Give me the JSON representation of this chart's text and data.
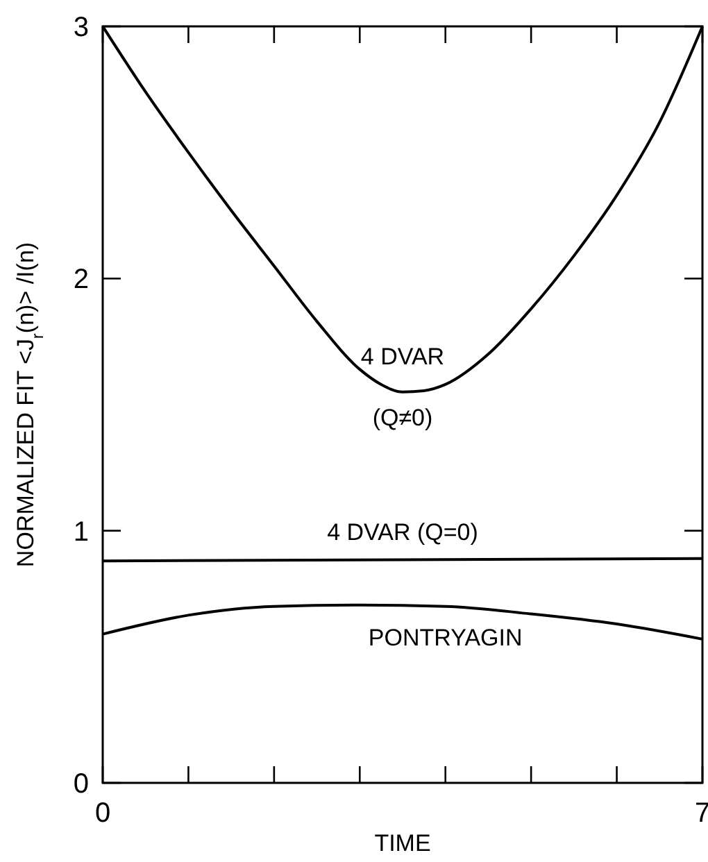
{
  "chart_data": {
    "type": "line",
    "xlabel": "TIME",
    "ylabel": "NORMALIZED FIT <J$_{r}$(n)> /I(n)",
    "xlim": [
      0,
      7
    ],
    "ylim": [
      0,
      3
    ],
    "xticks": [
      0,
      {
        "value": 1,
        "label": null
      },
      {
        "value": 2,
        "label": null
      },
      {
        "value": 3,
        "label": null
      },
      {
        "value": 4,
        "label": null
      },
      {
        "value": 5,
        "label": null
      },
      {
        "value": 6,
        "label": null
      },
      7
    ],
    "yticks": [
      0,
      1,
      2,
      3
    ],
    "grid": false,
    "marker": "none",
    "line_style": "solid",
    "series": [
      {
        "name": "4 DVAR (Q≠0)",
        "color": "#000000",
        "x": [
          0,
          0.5,
          1,
          1.5,
          2,
          2.5,
          3,
          3.25,
          3.5,
          3.75,
          4,
          4.5,
          5,
          5.5,
          6,
          6.5,
          7
        ],
        "values": [
          3,
          2.74,
          2.5,
          2.27,
          2.05,
          1.83,
          1.64,
          1.58,
          1.55,
          1.555,
          1.58,
          1.7,
          1.88,
          2.09,
          2.33,
          2.62,
          3
        ]
      },
      {
        "name": "4 DVAR (Q=0)",
        "color": "#000000",
        "x": [
          0,
          3.5,
          7
        ],
        "values": [
          0.88,
          0.885,
          0.89
        ]
      },
      {
        "name": "PONTRYAGIN",
        "color": "#000000",
        "x": [
          0,
          1,
          2,
          3,
          4,
          5,
          6,
          7
        ],
        "values": [
          0.59,
          0.665,
          0.7,
          0.705,
          0.7,
          0.67,
          0.63,
          0.57
        ]
      }
    ]
  }
}
